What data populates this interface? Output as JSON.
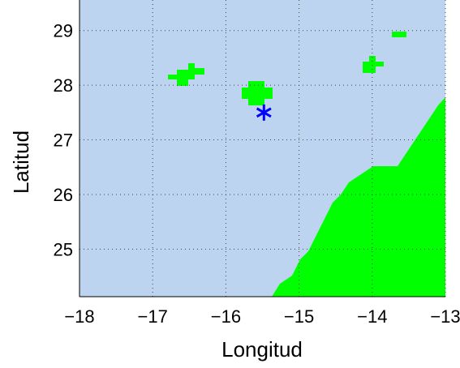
{
  "chart_data": {
    "type": "scatter",
    "x_label": "Longitud",
    "y_label": "Latitud",
    "series": [
      {
        "color": "#0000ff",
        "x": [
          -15.48
        ],
        "values": [
          27.5
        ]
      }
    ],
    "xlim": [
      -18,
      -13
    ],
    "ylim": [
      24.13,
      29.56
    ],
    "xticks": [
      {
        "value": -18,
        "label": "−18"
      },
      {
        "value": -17,
        "label": "−17"
      },
      {
        "value": -16,
        "label": "−16"
      },
      {
        "value": -15,
        "label": "−15"
      },
      {
        "value": -14,
        "label": "−14"
      },
      {
        "value": -13,
        "label": "−13"
      }
    ],
    "yticks": [
      25,
      26,
      27,
      28,
      29
    ],
    "grid": true,
    "background": "#bcd4f0",
    "land_color": "#00ff00"
  }
}
